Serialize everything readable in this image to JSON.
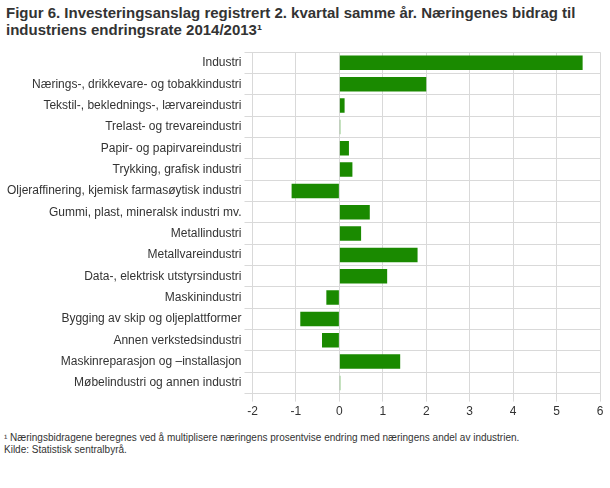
{
  "chart_data": {
    "type": "bar",
    "title": "Figur 6. Investeringsanslag registrert 2. kvartal samme år. Næringenes bidrag til industriens endringsrate 2014/2013¹",
    "annotations": [
      "¹ Næringsbidragene beregnes ved å multiplisere næringens prosentvise endring med næringens andel av industrien.",
      "Kilde: Statistisk sentralbyrå."
    ],
    "categories": [
      "Industri",
      "Nærings-, drikkevare- og tobakkindustri",
      "Tekstil-, beklednings-, lærvareindustri",
      "Trelast- og trevareindustri",
      "Papir- og papirvareindustri",
      "Trykking, grafisk industri",
      "Oljeraffinering, kjemisk farmasøytisk industri",
      "Gummi, plast, mineralsk industri mv.",
      "Metallindustri",
      "Metallvareindustri",
      "Data-, elektrisk utstyrsindustri",
      "Maskinindustri",
      "Bygging av skip og oljeplattformer",
      "Annen verkstedsindustri",
      "Maskinreparasjon og –installasjon",
      "Møbelindustri og annen industri"
    ],
    "values": [
      5.6,
      2.0,
      0.12,
      0.02,
      0.22,
      0.3,
      -1.1,
      0.7,
      0.5,
      1.8,
      1.1,
      -0.3,
      -0.9,
      -0.4,
      1.4,
      0.02
    ],
    "color": "#1a8a00",
    "orientation": "horizontal",
    "xlim": [
      -2,
      6
    ],
    "xticks": [
      -2,
      -1,
      0,
      1,
      2,
      3,
      4,
      5,
      6
    ],
    "grid": true
  }
}
